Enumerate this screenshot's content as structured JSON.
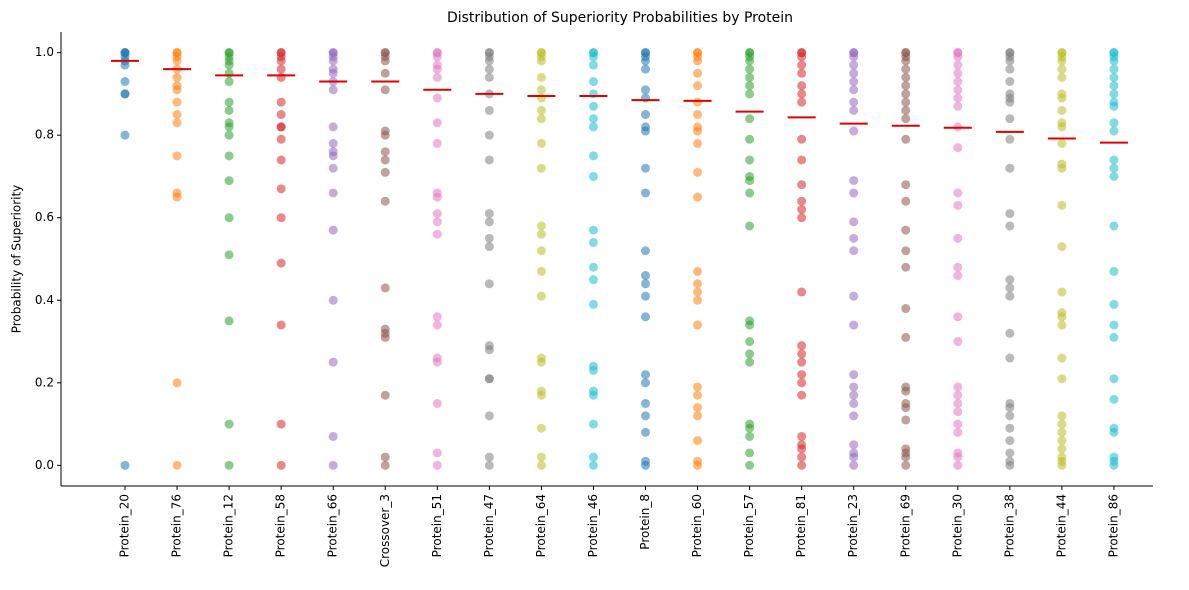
{
  "chart_data": {
    "type": "strip",
    "title": "Distribution of Superiority Probabilities by Protein",
    "y_label": "Probability of Superiority",
    "categories": [
      "Protein_20",
      "Protein_76",
      "Protein_12",
      "Protein_58",
      "Protein_66",
      "Crossover_3",
      "Protein_51",
      "Protein_47",
      "Protein_64",
      "Protein_46",
      "Protein_8",
      "Protein_60",
      "Protein_57",
      "Protein_81",
      "Protein_23",
      "Protein_69",
      "Protein_30",
      "Protein_38",
      "Protein_44",
      "Protein_86"
    ],
    "colors": [
      "#1f77b4",
      "#ff7f0e",
      "#2ca02c",
      "#d62728",
      "#9467bd",
      "#8c564b",
      "#e377c2",
      "#7f7f7f",
      "#bcbd22",
      "#17becf",
      "#1f77b4",
      "#ff7f0e",
      "#2ca02c",
      "#d62728",
      "#9467bd",
      "#8c564b",
      "#e377c2",
      "#7f7f7f",
      "#bcbd22",
      "#17becf"
    ],
    "points": [
      [
        1,
        1,
        1,
        0.99,
        0.98,
        0.97,
        0.93,
        0.9,
        0.9,
        0.8,
        0
      ],
      [
        1,
        1,
        0.99,
        0.98,
        0.96,
        0.94,
        0.92,
        0.91,
        0.88,
        0.85,
        0.83,
        0.75,
        0.66,
        0.65,
        0.2,
        0
      ],
      [
        1,
        1,
        0.99,
        0.98,
        0.97,
        0.95,
        0.93,
        0.88,
        0.86,
        0.83,
        0.82,
        0.8,
        0.75,
        0.69,
        0.6,
        0.51,
        0.35,
        0.1,
        0
      ],
      [
        1,
        1,
        0.99,
        0.98,
        0.96,
        0.94,
        0.88,
        0.85,
        0.82,
        0.82,
        0.79,
        0.74,
        0.67,
        0.6,
        0.49,
        0.34,
        0.1,
        0
      ],
      [
        1,
        1,
        0.99,
        0.98,
        0.96,
        0.95,
        0.93,
        0.91,
        0.82,
        0.78,
        0.76,
        0.75,
        0.72,
        0.66,
        0.57,
        0.4,
        0.25,
        0.07,
        0
      ],
      [
        1,
        1,
        0.99,
        0.98,
        0.95,
        0.91,
        0.81,
        0.8,
        0.76,
        0.74,
        0.71,
        0.64,
        0.43,
        0.33,
        0.32,
        0.31,
        0.17,
        0.02,
        0
      ],
      [
        1,
        1,
        0.99,
        0.97,
        0.96,
        0.94,
        0.89,
        0.83,
        0.78,
        0.66,
        0.65,
        0.61,
        0.59,
        0.56,
        0.36,
        0.34,
        0.26,
        0.25,
        0.15,
        0.03,
        0
      ],
      [
        1,
        1,
        0.99,
        0.98,
        0.96,
        0.94,
        0.9,
        0.86,
        0.8,
        0.74,
        0.61,
        0.59,
        0.55,
        0.53,
        0.44,
        0.29,
        0.28,
        0.21,
        0.21,
        0.12,
        0.02,
        0
      ],
      [
        1,
        1,
        0.99,
        0.98,
        0.94,
        0.91,
        0.89,
        0.86,
        0.84,
        0.78,
        0.72,
        0.58,
        0.56,
        0.52,
        0.47,
        0.41,
        0.26,
        0.25,
        0.18,
        0.17,
        0.09,
        0.02,
        0
      ],
      [
        1,
        1,
        0.99,
        0.97,
        0.93,
        0.9,
        0.87,
        0.84,
        0.82,
        0.75,
        0.7,
        0.57,
        0.54,
        0.48,
        0.45,
        0.39,
        0.24,
        0.23,
        0.18,
        0.17,
        0.1,
        0.02,
        0
      ],
      [
        1,
        1,
        0.99,
        0.98,
        0.96,
        0.91,
        0.89,
        0.85,
        0.82,
        0.81,
        0.72,
        0.66,
        0.52,
        0.46,
        0.44,
        0.41,
        0.36,
        0.22,
        0.2,
        0.15,
        0.12,
        0.08,
        0.01,
        0
      ],
      [
        1,
        1,
        0.99,
        0.98,
        0.95,
        0.92,
        0.88,
        0.85,
        0.82,
        0.81,
        0.78,
        0.71,
        0.65,
        0.47,
        0.44,
        0.42,
        0.4,
        0.34,
        0.19,
        0.17,
        0.14,
        0.12,
        0.06,
        0.01,
        0
      ],
      [
        1,
        1,
        0.99,
        0.98,
        0.96,
        0.94,
        0.92,
        0.9,
        0.84,
        0.79,
        0.74,
        0.7,
        0.69,
        0.66,
        0.58,
        0.35,
        0.34,
        0.3,
        0.27,
        0.25,
        0.1,
        0.09,
        0.07,
        0.03,
        0
      ],
      [
        1,
        1,
        0.99,
        0.97,
        0.95,
        0.92,
        0.9,
        0.88,
        0.79,
        0.74,
        0.68,
        0.64,
        0.62,
        0.6,
        0.42,
        0.29,
        0.27,
        0.25,
        0.22,
        0.2,
        0.17,
        0.07,
        0.05,
        0.04,
        0.02,
        0
      ],
      [
        1,
        1,
        0.99,
        0.97,
        0.95,
        0.93,
        0.91,
        0.88,
        0.86,
        0.81,
        0.69,
        0.66,
        0.59,
        0.55,
        0.52,
        0.41,
        0.34,
        0.22,
        0.19,
        0.17,
        0.15,
        0.12,
        0.05,
        0.03,
        0.02,
        0
      ],
      [
        1,
        1,
        0.99,
        0.98,
        0.96,
        0.94,
        0.92,
        0.9,
        0.88,
        0.86,
        0.84,
        0.79,
        0.68,
        0.64,
        0.57,
        0.52,
        0.48,
        0.38,
        0.31,
        0.19,
        0.18,
        0.15,
        0.14,
        0.11,
        0.04,
        0.03,
        0.02,
        0
      ],
      [
        1,
        1,
        0.99,
        0.97,
        0.95,
        0.93,
        0.91,
        0.89,
        0.87,
        0.82,
        0.77,
        0.66,
        0.63,
        0.55,
        0.48,
        0.46,
        0.36,
        0.3,
        0.19,
        0.17,
        0.15,
        0.13,
        0.1,
        0.08,
        0.03,
        0.02,
        0
      ],
      [
        1,
        1,
        0.99,
        0.98,
        0.96,
        0.93,
        0.9,
        0.89,
        0.88,
        0.84,
        0.79,
        0.72,
        0.61,
        0.58,
        0.45,
        0.43,
        0.41,
        0.32,
        0.26,
        0.15,
        0.14,
        0.12,
        0.09,
        0.06,
        0.03,
        0.01,
        0
      ],
      [
        1,
        1,
        0.99,
        0.98,
        0.96,
        0.94,
        0.9,
        0.89,
        0.86,
        0.83,
        0.82,
        0.78,
        0.73,
        0.72,
        0.63,
        0.53,
        0.42,
        0.37,
        0.36,
        0.34,
        0.26,
        0.21,
        0.12,
        0.1,
        0.08,
        0.06,
        0.04,
        0.02,
        0.01,
        0
      ],
      [
        1,
        1,
        0.99,
        0.98,
        0.96,
        0.94,
        0.92,
        0.9,
        0.88,
        0.87,
        0.83,
        0.81,
        0.74,
        0.72,
        0.7,
        0.58,
        0.47,
        0.39,
        0.34,
        0.31,
        0.21,
        0.16,
        0.09,
        0.08,
        0.02,
        0.01,
        0
      ]
    ],
    "means": [
      0.98,
      0.96,
      0.945,
      0.945,
      0.93,
      0.93,
      0.91,
      0.9,
      0.895,
      0.895,
      0.885,
      0.883,
      0.857,
      0.843,
      0.828,
      0.823,
      0.818,
      0.808,
      0.792,
      0.782
    ],
    "mean_color": "#e00000",
    "ylim": [
      -0.05,
      1.05
    ],
    "yticks": [
      {
        "value": 0,
        "label": "0.0"
      },
      0.2,
      0.4,
      0.6,
      0.8,
      {
        "value": 1,
        "label": "1.0"
      }
    ]
  }
}
